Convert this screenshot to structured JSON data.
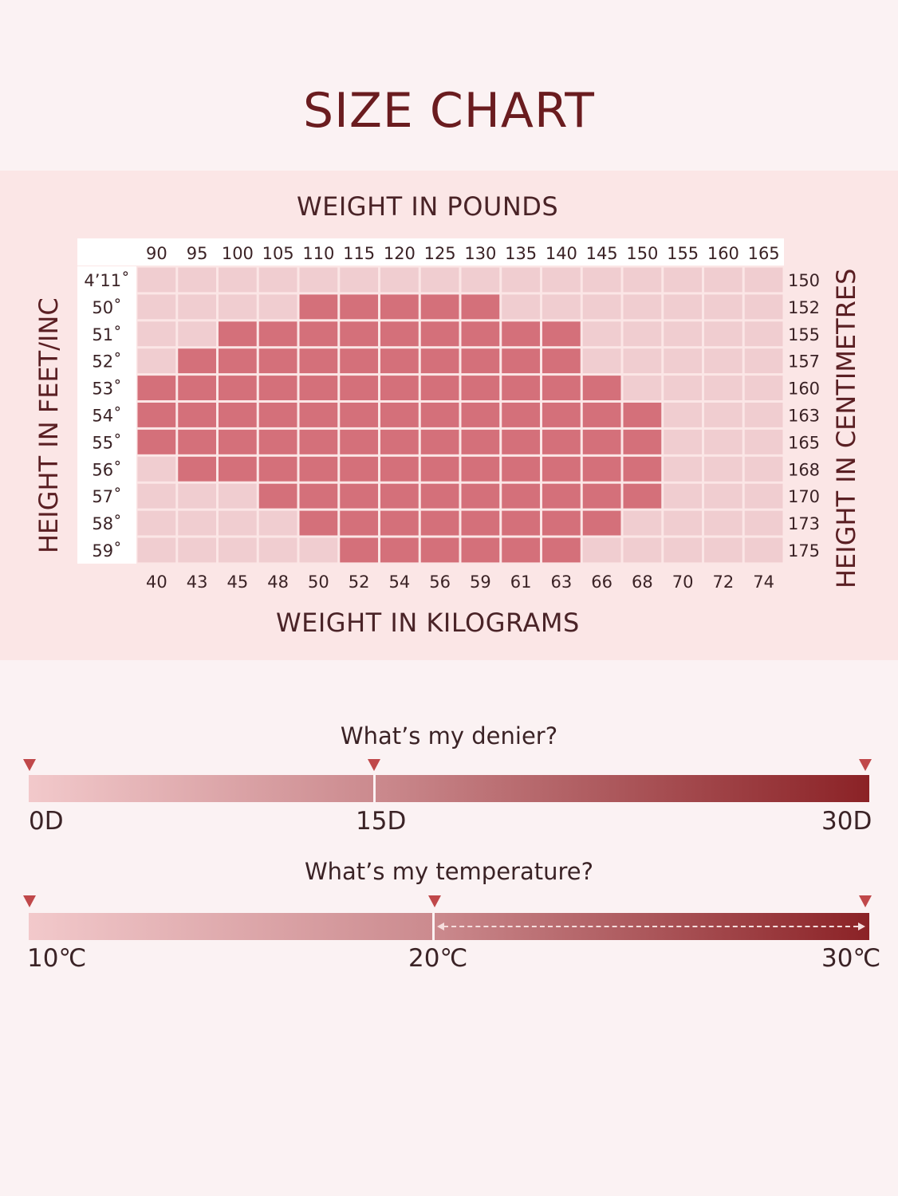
{
  "title": "SIZE CHART",
  "chart_data": {
    "type": "heatmap",
    "top_axis_title": "WEIGHT IN POUNDS",
    "bottom_axis_title": "WEIGHT IN KILOGRAMS",
    "left_axis_title": "HEIGHT IN FEET/INC",
    "right_axis_title": "HEIGHT IN CENTIMETRES",
    "weight_lbs": [
      "90",
      "95",
      "100",
      "105",
      "110",
      "115",
      "120",
      "125",
      "130",
      "135",
      "140",
      "145",
      "150",
      "155",
      "160",
      "165"
    ],
    "weight_kg": [
      "40",
      "43",
      "45",
      "48",
      "50",
      "52",
      "54",
      "56",
      "59",
      "61",
      "63",
      "66",
      "68",
      "70",
      "72",
      "74"
    ],
    "height_ft": [
      "4’11˚",
      "50˚",
      "51˚",
      "52˚",
      "53˚",
      "54˚",
      "55˚",
      "56˚",
      "57˚",
      "58˚",
      "59˚"
    ],
    "height_cm": [
      "150",
      "152",
      "155",
      "157",
      "160",
      "163",
      "165",
      "168",
      "170",
      "173",
      "175"
    ],
    "fit_ranges": [
      [],
      [
        4,
        8
      ],
      [
        2,
        10
      ],
      [
        1,
        10
      ],
      [
        0,
        11
      ],
      [
        0,
        12
      ],
      [
        0,
        12
      ],
      [
        1,
        12
      ],
      [
        3,
        12
      ],
      [
        4,
        11
      ],
      [
        5,
        10
      ]
    ],
    "colors": {
      "fit": "#d4707a",
      "empty": "#f0cdd0",
      "grid_line": "#fbf2f3"
    }
  },
  "denier": {
    "title": "What’s my denier?",
    "labels": [
      "0D",
      "15D",
      "30D"
    ],
    "colors": {
      "start": "#f2c9cb",
      "mid": "#cb8a8e",
      "end": "#8b2226"
    }
  },
  "temperature": {
    "title": "What’s my temperature?",
    "labels": [
      "10℃",
      "20℃",
      "30℃"
    ],
    "colors": {
      "start": "#f2c9cb",
      "mid": "#cb8a8e",
      "end": "#8b2226"
    }
  },
  "marker_color": "#c0484a"
}
